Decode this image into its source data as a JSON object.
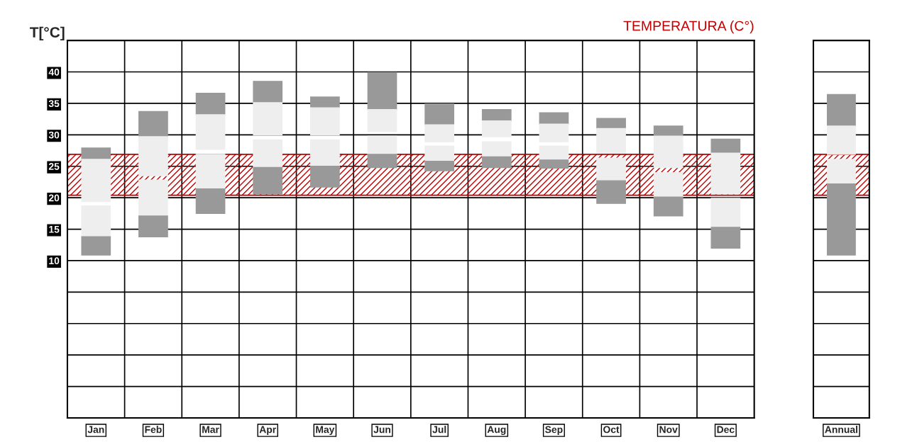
{
  "chart_data": [
    {
      "type": "bar",
      "title": "TEMPERATURA (C°)",
      "ylabel": "T[°C]",
      "categories": [
        "Jan",
        "Feb",
        "Mar",
        "Apr",
        "May",
        "Jun",
        "Jul",
        "Aug",
        "Sep",
        "Oct",
        "Nov",
        "Dec"
      ],
      "series": [
        {
          "color": "#999999",
          "base": [
            26.1,
            29.7,
            33.2,
            35.1,
            34.3,
            34.0,
            31.6,
            32.2,
            31.7,
            31.0,
            29.8,
            27.1
          ],
          "values": [
            1.8,
            4.0,
            3.4,
            3.4,
            1.7,
            5.9,
            3.3,
            1.8,
            1.8,
            1.6,
            1.6,
            2.2
          ]
        },
        {
          "color": "#eeeeee",
          "base": [
            19.4,
            23.5,
            27.7,
            30.0,
            30.0,
            30.5,
            28.9,
            29.7,
            28.9,
            27.1,
            24.8,
            20.6
          ],
          "values": [
            6.7,
            6.2,
            5.5,
            5.1,
            4.3,
            3.5,
            2.7,
            2.5,
            2.8,
            3.9,
            5.0,
            6.5
          ]
        },
        {
          "color": "#eeeeee",
          "base": [
            13.8,
            17.1,
            21.4,
            24.8,
            25.0,
            26.9,
            25.8,
            26.5,
            26.0,
            22.7,
            20.1,
            15.3
          ],
          "values": [
            4.9,
            5.7,
            5.5,
            4.4,
            4.2,
            2.9,
            2.4,
            2.4,
            2.2,
            3.6,
            3.9,
            4.6
          ]
        },
        {
          "color": "#999999",
          "base": [
            10.9,
            13.8,
            17.5,
            20.6,
            21.7,
            24.8,
            24.3,
            24.8,
            24.7,
            19.1,
            17.1,
            12.0
          ],
          "values": [
            2.9,
            3.3,
            3.9,
            4.2,
            3.3,
            2.1,
            1.5,
            1.7,
            1.3,
            3.6,
            3.0,
            3.3
          ]
        }
      ],
      "ylim": [
        -15,
        45
      ],
      "yticks": [
        {
          "value": -15,
          "label": null
        },
        {
          "value": -10,
          "label": null
        },
        {
          "value": -5,
          "label": null
        },
        {
          "value": 0,
          "label": null
        },
        {
          "value": 5,
          "label": null
        },
        10,
        15,
        20,
        25,
        30,
        35,
        40,
        {
          "value": 45,
          "label": null
        }
      ],
      "bands": [
        {
          "axis": "y",
          "from": 20.4,
          "to": 26.9,
          "color": "#c00000"
        }
      ],
      "grid": true
    },
    {
      "type": "bar",
      "categories": [
        "Annual"
      ],
      "series": [
        {
          "color": "#999999",
          "base": [
            31.4
          ],
          "values": [
            5.0
          ]
        },
        {
          "color": "#eeeeee",
          "base": [
            26.9
          ],
          "values": [
            4.5
          ]
        },
        {
          "color": "#eeeeee",
          "base": [
            22.2
          ],
          "values": [
            3.9
          ]
        },
        {
          "color": "#999999",
          "base": [
            10.9
          ],
          "values": [
            11.3
          ]
        }
      ],
      "ylim": [
        -15,
        45
      ],
      "yticks": [
        {
          "value": -15,
          "label": null
        },
        {
          "value": -10,
          "label": null
        },
        {
          "value": -5,
          "label": null
        },
        {
          "value": 0,
          "label": null
        },
        {
          "value": 5,
          "label": null
        },
        10,
        15,
        20,
        25,
        30,
        35,
        40,
        {
          "value": 45,
          "label": null
        }
      ],
      "tick_labels": "x",
      "bands": [
        {
          "axis": "y",
          "from": 20.4,
          "to": 26.9,
          "color": "#c00000"
        }
      ],
      "grid": true
    }
  ]
}
